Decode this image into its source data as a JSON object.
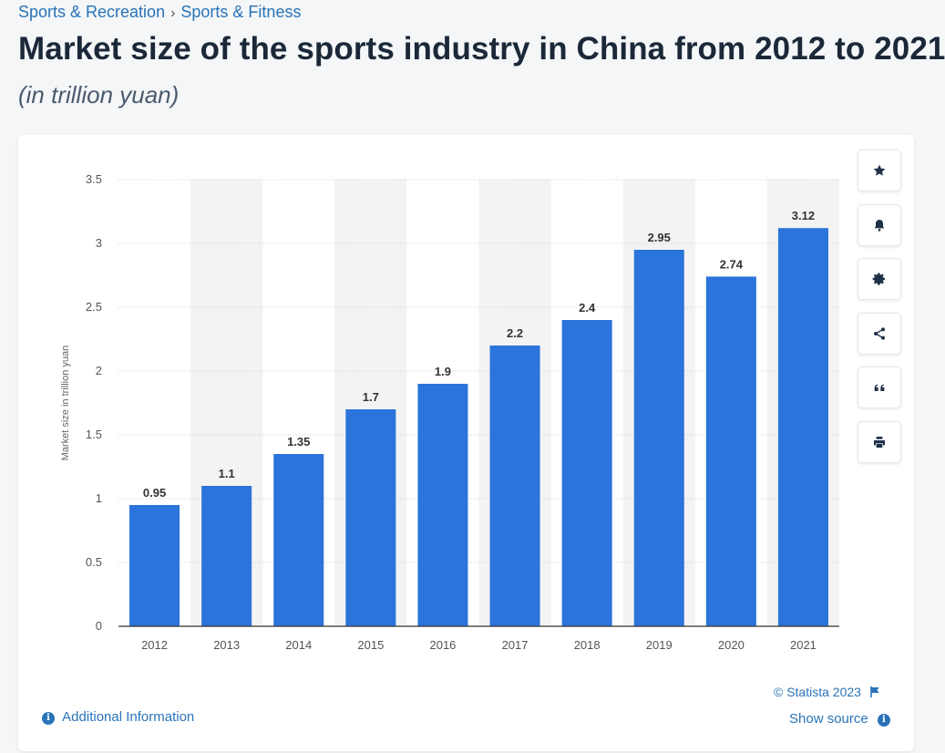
{
  "breadcrumb": {
    "items": [
      "Sports & Recreation",
      "Sports & Fitness"
    ],
    "separator": "›"
  },
  "page": {
    "title": "Market size of the sports industry in China from 2012 to 2021",
    "subtitle": "(in trillion yuan)"
  },
  "footer": {
    "copyright": "© Statista 2023",
    "show_source": "Show source",
    "additional_info": "Additional Information"
  },
  "toolbar": {
    "buttons": [
      "star-icon",
      "bell-icon",
      "gear-icon",
      "share-icon",
      "quote-icon",
      "print-icon"
    ]
  },
  "colors": {
    "bar": "#2a74db",
    "band": "#f3f3f3",
    "link": "#2a73b8"
  },
  "chart_data": {
    "type": "bar",
    "title": "Market size of the sports industry in China from 2012 to 2021",
    "xlabel": "",
    "ylabel": "Market size in trillion yuan",
    "categories": [
      "2012",
      "2013",
      "2014",
      "2015",
      "2016",
      "2017",
      "2018",
      "2019",
      "2020",
      "2021"
    ],
    "values": [
      0.95,
      1.1,
      1.35,
      1.7,
      1.9,
      2.2,
      2.4,
      2.95,
      2.74,
      3.12
    ],
    "value_labels": [
      "0.95",
      "1.1",
      "1.35",
      "1.7",
      "1.9",
      "2.2",
      "2.4",
      "2.95",
      "2.74",
      "3.12"
    ],
    "ylim": [
      0,
      3.5
    ],
    "yticks": [
      0,
      0.5,
      1,
      1.5,
      2,
      2.5,
      3,
      3.5
    ],
    "ytick_labels": [
      "0",
      "0.5",
      "1",
      "1.5",
      "2",
      "2.5",
      "3",
      "3.5"
    ],
    "grid": true
  }
}
